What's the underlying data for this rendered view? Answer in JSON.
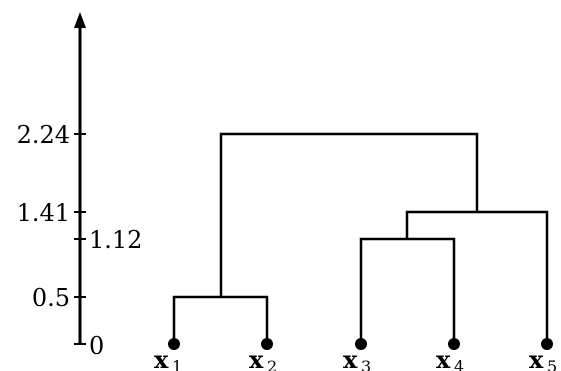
{
  "chart_data": {
    "type": "dendrogram",
    "axis": {
      "ticks_left": [
        "0",
        "0.5",
        "1.41",
        "2.24"
      ],
      "ticks_right": [
        "1.12"
      ],
      "tick_values": {
        "0": 0,
        "0.5": 0.5,
        "1.12": 1.12,
        "1.41": 1.41,
        "2.24": 2.24
      }
    },
    "leaves": [
      {
        "name": "x",
        "sub": "1"
      },
      {
        "name": "x",
        "sub": "2"
      },
      {
        "name": "x",
        "sub": "3"
      },
      {
        "name": "x",
        "sub": "4"
      },
      {
        "name": "x",
        "sub": "5"
      }
    ],
    "merges": [
      {
        "left": "x1",
        "right": "x2",
        "height": 0.5
      },
      {
        "left": "x3",
        "right": "x4",
        "height": 1.12
      },
      {
        "left": "x3x4",
        "right": "x5",
        "height": 1.41
      },
      {
        "left": "x1x2",
        "right": "x3x4x5",
        "height": 2.24
      }
    ]
  }
}
